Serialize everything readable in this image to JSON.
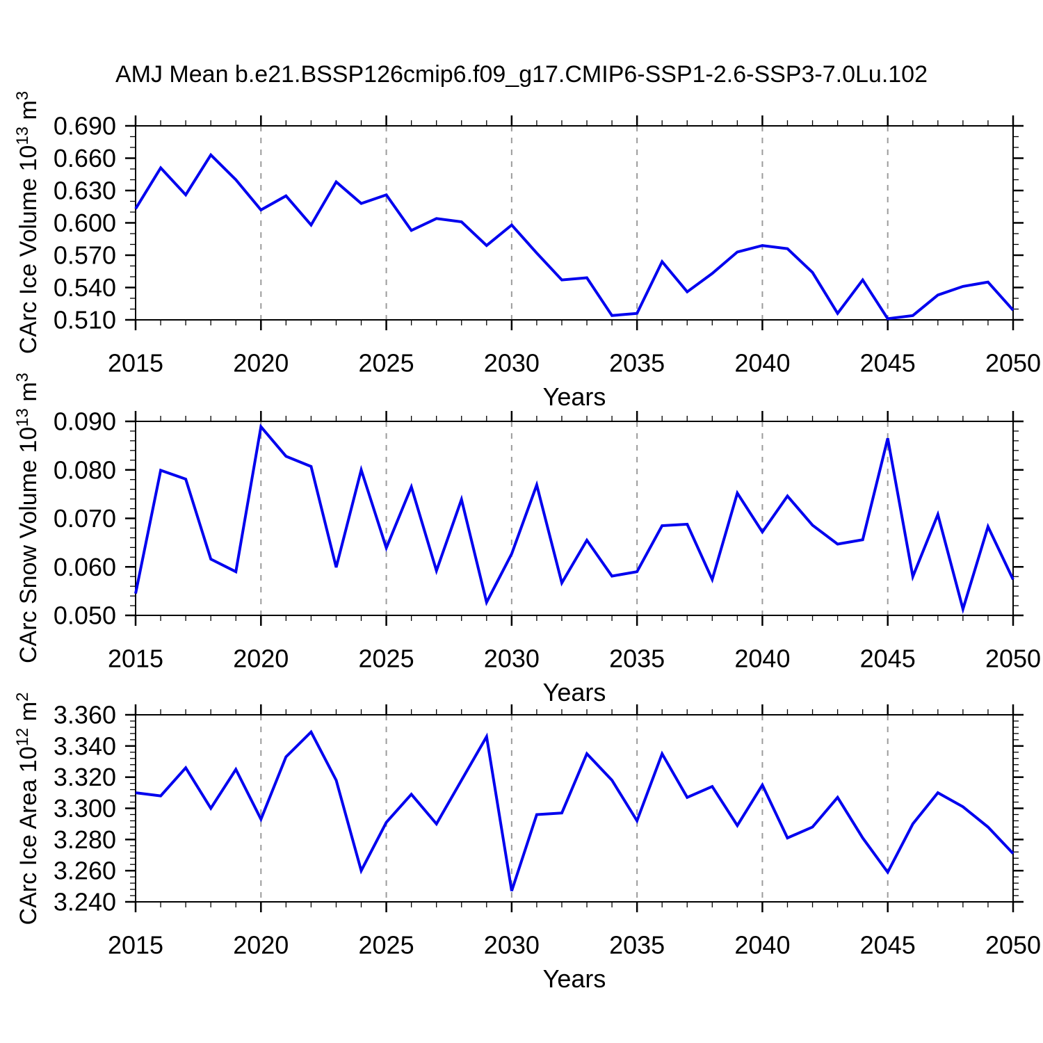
{
  "title": "AMJ Mean b.e21.BSSP126cmip6.f09_g17.CMIP6-SSP1-2.6-SSP3-7.0Lu.102",
  "colors": {
    "line": "#0000EE",
    "grid": "#9B9B9B",
    "axis": "#000000",
    "background": "#FFFFFF"
  },
  "chart_data": {
    "type": "line",
    "x_label": "Years",
    "xlim": [
      2015,
      2050
    ],
    "years": [
      2015,
      2016,
      2017,
      2018,
      2019,
      2020,
      2021,
      2022,
      2023,
      2024,
      2025,
      2026,
      2027,
      2028,
      2029,
      2030,
      2031,
      2032,
      2033,
      2034,
      2035,
      2036,
      2037,
      2038,
      2039,
      2040,
      2041,
      2042,
      2043,
      2044,
      2045,
      2046,
      2047,
      2048,
      2049,
      2050
    ],
    "x_major_ticks": [
      2015,
      2020,
      2025,
      2030,
      2035,
      2040,
      2045,
      2050
    ],
    "x_tick_labels": [
      "2015",
      "2020",
      "2025",
      "2030",
      "2035",
      "2040",
      "2045",
      "2050"
    ],
    "grid_years": [
      2020,
      2025,
      2030,
      2035,
      2040,
      2045
    ],
    "grid_on": "vertical-dashed-only",
    "legend": "none",
    "panels": [
      {
        "name": "ice-volume",
        "ylabel": {
          "pre": "CArc Ice Volume 10",
          "sup1": "13",
          "mid": " m",
          "sup2": "3"
        },
        "xlabel": "Years",
        "ylim": [
          0.51,
          0.69
        ],
        "y_ticks": [
          0.69,
          0.66,
          0.63,
          0.6,
          0.57,
          0.54,
          0.51
        ],
        "y_tick_labels": [
          "0.690",
          "0.660",
          "0.630",
          "0.600",
          "0.570",
          "0.540",
          "0.510"
        ],
        "y_minor_step": 0.01,
        "values": [
          0.613,
          0.651,
          0.626,
          0.663,
          0.64,
          0.612,
          0.625,
          0.598,
          0.638,
          0.618,
          0.626,
          0.593,
          0.604,
          0.601,
          0.579,
          0.598,
          0.572,
          0.547,
          0.549,
          0.514,
          0.516,
          0.564,
          0.536,
          0.553,
          0.573,
          0.579,
          0.576,
          0.554,
          0.516,
          0.547,
          0.511,
          0.514,
          0.533,
          0.541,
          0.545,
          0.519
        ]
      },
      {
        "name": "snow-volume",
        "ylabel": {
          "pre": "CArc Snow Volume 10",
          "sup1": "13",
          "mid": " m",
          "sup2": "3"
        },
        "xlabel": "Years",
        "ylim": [
          0.05,
          0.09
        ],
        "y_ticks": [
          0.09,
          0.08,
          0.07,
          0.06,
          0.05
        ],
        "y_tick_labels": [
          "0.090",
          "0.080",
          "0.070",
          "0.060",
          "0.050"
        ],
        "y_minor_step": 0.002,
        "values": [
          0.0545,
          0.0799,
          0.0781,
          0.0616,
          0.059,
          0.0889,
          0.0828,
          0.0807,
          0.0599,
          0.08,
          0.0639,
          0.0765,
          0.0592,
          0.0739,
          0.0527,
          0.0627,
          0.0769,
          0.0567,
          0.0655,
          0.0581,
          0.059,
          0.0685,
          0.0688,
          0.0574,
          0.0752,
          0.0672,
          0.0746,
          0.0686,
          0.0647,
          0.0656,
          0.0865,
          0.058,
          0.0708,
          0.0513,
          0.0683,
          0.0574
        ]
      },
      {
        "name": "ice-area",
        "ylabel": {
          "pre": "CArc Ice Area 10",
          "sup1": "12",
          "mid": " m",
          "sup2": "2"
        },
        "xlabel": "Years",
        "ylim": [
          3.24,
          3.36
        ],
        "y_ticks": [
          3.36,
          3.34,
          3.32,
          3.3,
          3.28,
          3.26,
          3.24
        ],
        "y_tick_labels": [
          "3.360",
          "3.340",
          "3.320",
          "3.300",
          "3.280",
          "3.260",
          "3.240"
        ],
        "y_minor_step": 0.004,
        "values": [
          3.31,
          3.308,
          3.326,
          3.3,
          3.325,
          3.293,
          3.333,
          3.349,
          3.318,
          3.26,
          3.291,
          3.309,
          3.29,
          3.318,
          3.346,
          3.247,
          3.296,
          3.297,
          3.335,
          3.318,
          3.292,
          3.335,
          3.307,
          3.314,
          3.289,
          3.315,
          3.281,
          3.288,
          3.307,
          3.281,
          3.259,
          3.29,
          3.31,
          3.301,
          3.288,
          3.271
        ]
      }
    ]
  }
}
